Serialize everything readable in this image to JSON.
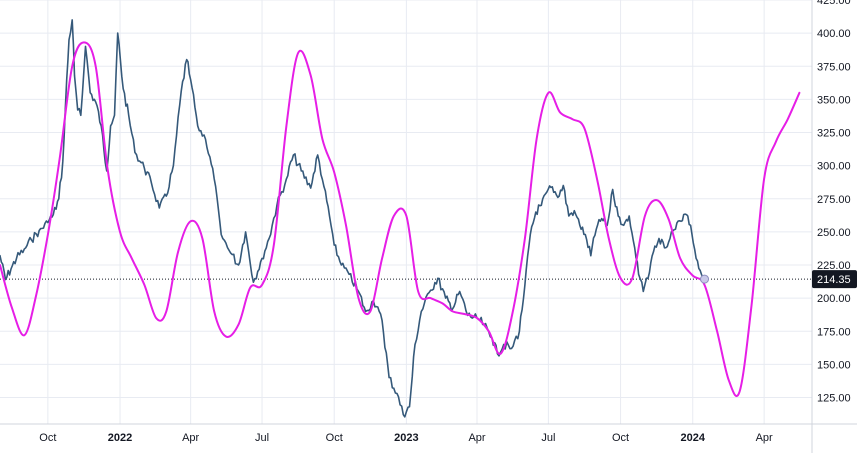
{
  "chart_data": {
    "type": "line",
    "title": "",
    "xlabel": "",
    "ylabel": "",
    "y_axis_position": "right",
    "grid": true,
    "ylim": [
      105,
      425
    ],
    "xlim": [
      "2021-08-01",
      "2024-06-01"
    ],
    "y_ticks": [
      {
        "value": 425,
        "label": "425.00"
      },
      {
        "value": 400,
        "label": "400.00"
      },
      {
        "value": 375,
        "label": "375.00"
      },
      {
        "value": 350,
        "label": "350.00"
      },
      {
        "value": 325,
        "label": "325.00"
      },
      {
        "value": 300,
        "label": "300.00"
      },
      {
        "value": 275,
        "label": "275.00"
      },
      {
        "value": 250,
        "label": "250.00"
      },
      {
        "value": 225,
        "label": "225.00"
      },
      {
        "value": 200,
        "label": "200.00"
      },
      {
        "value": 175,
        "label": "175.00"
      },
      {
        "value": 150,
        "label": "150.00"
      },
      {
        "value": 125,
        "label": "125.00"
      }
    ],
    "x_ticks": [
      {
        "date": "2021-10-01",
        "label": "Oct",
        "bold": false
      },
      {
        "date": "2022-01-01",
        "label": "2022",
        "bold": true
      },
      {
        "date": "2022-04-01",
        "label": "Apr",
        "bold": false
      },
      {
        "date": "2022-07-01",
        "label": "Jul",
        "bold": false
      },
      {
        "date": "2022-10-01",
        "label": "Oct",
        "bold": false
      },
      {
        "date": "2023-01-01",
        "label": "2023",
        "bold": true
      },
      {
        "date": "2023-04-01",
        "label": "Apr",
        "bold": false
      },
      {
        "date": "2023-07-01",
        "label": "Jul",
        "bold": false
      },
      {
        "date": "2023-10-01",
        "label": "Oct",
        "bold": false
      },
      {
        "date": "2024-01-01",
        "label": "2024",
        "bold": true
      },
      {
        "date": "2024-04-01",
        "label": "Apr",
        "bold": false
      }
    ],
    "last_price": {
      "value": 214.35,
      "label": "214.35",
      "color": "#131722"
    },
    "series": [
      {
        "color": "#35597a",
        "line_width": 1.6,
        "noise": true,
        "points": [
          [
            "2021-08-01",
            232
          ],
          [
            "2021-08-08",
            214
          ],
          [
            "2021-08-15",
            222
          ],
          [
            "2021-08-22",
            230
          ],
          [
            "2021-09-01",
            237
          ],
          [
            "2021-09-10",
            244
          ],
          [
            "2021-09-20",
            251
          ],
          [
            "2021-10-01",
            257
          ],
          [
            "2021-10-08",
            263
          ],
          [
            "2021-10-15",
            275
          ],
          [
            "2021-10-20",
            303
          ],
          [
            "2021-10-25",
            365
          ],
          [
            "2021-10-28",
            395
          ],
          [
            "2021-11-01",
            410
          ],
          [
            "2021-11-04",
            368
          ],
          [
            "2021-11-08",
            342
          ],
          [
            "2021-11-12",
            338
          ],
          [
            "2021-11-18",
            390
          ],
          [
            "2021-11-24",
            355
          ],
          [
            "2021-12-01",
            348
          ],
          [
            "2021-12-08",
            330
          ],
          [
            "2021-12-15",
            296
          ],
          [
            "2021-12-20",
            330
          ],
          [
            "2021-12-25",
            338
          ],
          [
            "2021-12-29",
            400
          ],
          [
            "2022-01-05",
            358
          ],
          [
            "2022-01-12",
            338
          ],
          [
            "2022-01-20",
            310
          ],
          [
            "2022-02-01",
            298
          ],
          [
            "2022-02-10",
            287
          ],
          [
            "2022-02-20",
            268
          ],
          [
            "2022-03-01",
            277
          ],
          [
            "2022-03-10",
            300
          ],
          [
            "2022-03-20",
            356
          ],
          [
            "2022-03-27",
            380
          ],
          [
            "2022-04-01",
            365
          ],
          [
            "2022-04-10",
            330
          ],
          [
            "2022-04-20",
            320
          ],
          [
            "2022-05-01",
            290
          ],
          [
            "2022-05-10",
            248
          ],
          [
            "2022-05-20",
            236
          ],
          [
            "2022-06-01",
            225
          ],
          [
            "2022-06-10",
            250
          ],
          [
            "2022-06-20",
            212
          ],
          [
            "2022-07-01",
            230
          ],
          [
            "2022-07-10",
            245
          ],
          [
            "2022-07-20",
            270
          ],
          [
            "2022-08-01",
            290
          ],
          [
            "2022-08-10",
            308
          ],
          [
            "2022-08-20",
            296
          ],
          [
            "2022-09-01",
            283
          ],
          [
            "2022-09-10",
            308
          ],
          [
            "2022-09-18",
            284
          ],
          [
            "2022-09-25",
            262
          ],
          [
            "2022-10-01",
            240
          ],
          [
            "2022-10-10",
            225
          ],
          [
            "2022-10-20",
            218
          ],
          [
            "2022-11-01",
            205
          ],
          [
            "2022-11-10",
            190
          ],
          [
            "2022-11-20",
            198
          ],
          [
            "2022-12-01",
            183
          ],
          [
            "2022-12-10",
            140
          ],
          [
            "2022-12-20",
            128
          ],
          [
            "2022-12-28",
            112
          ],
          [
            "2023-01-05",
            118
          ],
          [
            "2023-01-12",
            165
          ],
          [
            "2023-01-20",
            190
          ],
          [
            "2023-02-01",
            206
          ],
          [
            "2023-02-10",
            215
          ],
          [
            "2023-02-20",
            200
          ],
          [
            "2023-03-01",
            192
          ],
          [
            "2023-03-10",
            205
          ],
          [
            "2023-03-20",
            187
          ],
          [
            "2023-04-01",
            185
          ],
          [
            "2023-04-10",
            180
          ],
          [
            "2023-04-20",
            170
          ],
          [
            "2023-04-27",
            158
          ],
          [
            "2023-05-05",
            165
          ],
          [
            "2023-05-15",
            162
          ],
          [
            "2023-05-25",
            175
          ],
          [
            "2023-06-01",
            210
          ],
          [
            "2023-06-08",
            248
          ],
          [
            "2023-06-15",
            265
          ],
          [
            "2023-06-22",
            270
          ],
          [
            "2023-06-29",
            280
          ],
          [
            "2023-07-06",
            284
          ],
          [
            "2023-07-13",
            276
          ],
          [
            "2023-07-20",
            285
          ],
          [
            "2023-07-27",
            262
          ],
          [
            "2023-08-03",
            266
          ],
          [
            "2023-08-10",
            255
          ],
          [
            "2023-08-17",
            248
          ],
          [
            "2023-08-24",
            232
          ],
          [
            "2023-08-31",
            252
          ],
          [
            "2023-09-07",
            260
          ],
          [
            "2023-09-14",
            255
          ],
          [
            "2023-09-21",
            282
          ],
          [
            "2023-09-28",
            262
          ],
          [
            "2023-10-05",
            255
          ],
          [
            "2023-10-12",
            262
          ],
          [
            "2023-10-19",
            238
          ],
          [
            "2023-10-24",
            218
          ],
          [
            "2023-10-30",
            205
          ],
          [
            "2023-11-05",
            215
          ],
          [
            "2023-11-12",
            235
          ],
          [
            "2023-11-19",
            245
          ],
          [
            "2023-11-26",
            238
          ],
          [
            "2023-12-03",
            245
          ],
          [
            "2023-12-10",
            252
          ],
          [
            "2023-12-17",
            258
          ],
          [
            "2023-12-24",
            263
          ],
          [
            "2023-12-31",
            248
          ],
          [
            "2024-01-07",
            228
          ],
          [
            "2024-01-14",
            216
          ]
        ]
      },
      {
        "color": "#e61ee6",
        "line_width": 2,
        "noise": false,
        "points": [
          [
            "2021-08-01",
            225
          ],
          [
            "2021-08-16",
            193
          ],
          [
            "2021-09-01",
            172
          ],
          [
            "2021-09-16",
            202
          ],
          [
            "2021-10-01",
            248
          ],
          [
            "2021-10-16",
            305
          ],
          [
            "2021-11-01",
            375
          ],
          [
            "2021-11-16",
            393
          ],
          [
            "2021-12-01",
            375
          ],
          [
            "2021-12-16",
            298
          ],
          [
            "2022-01-01",
            250
          ],
          [
            "2022-01-16",
            230
          ],
          [
            "2022-02-01",
            210
          ],
          [
            "2022-02-16",
            185
          ],
          [
            "2022-03-01",
            190
          ],
          [
            "2022-03-16",
            235
          ],
          [
            "2022-04-01",
            258
          ],
          [
            "2022-04-16",
            245
          ],
          [
            "2022-05-01",
            190
          ],
          [
            "2022-05-16",
            171
          ],
          [
            "2022-06-01",
            180
          ],
          [
            "2022-06-16",
            208
          ],
          [
            "2022-07-01",
            210
          ],
          [
            "2022-07-16",
            240
          ],
          [
            "2022-08-01",
            330
          ],
          [
            "2022-08-16",
            385
          ],
          [
            "2022-09-01",
            368
          ],
          [
            "2022-09-16",
            320
          ],
          [
            "2022-10-01",
            295
          ],
          [
            "2022-10-16",
            255
          ],
          [
            "2022-11-01",
            200
          ],
          [
            "2022-11-16",
            190
          ],
          [
            "2022-12-01",
            230
          ],
          [
            "2022-12-16",
            262
          ],
          [
            "2023-01-01",
            262
          ],
          [
            "2023-01-16",
            205
          ],
          [
            "2023-02-01",
            200
          ],
          [
            "2023-02-16",
            196
          ],
          [
            "2023-03-01",
            190
          ],
          [
            "2023-03-16",
            188
          ],
          [
            "2023-04-01",
            185
          ],
          [
            "2023-04-16",
            175
          ],
          [
            "2023-05-01",
            158
          ],
          [
            "2023-05-16",
            188
          ],
          [
            "2023-06-01",
            245
          ],
          [
            "2023-06-16",
            320
          ],
          [
            "2023-07-01",
            355
          ],
          [
            "2023-07-16",
            340
          ],
          [
            "2023-08-01",
            335
          ],
          [
            "2023-08-16",
            328
          ],
          [
            "2023-09-01",
            290
          ],
          [
            "2023-09-16",
            245
          ],
          [
            "2023-10-01",
            215
          ],
          [
            "2023-10-16",
            215
          ],
          [
            "2023-11-01",
            262
          ],
          [
            "2023-11-16",
            274
          ],
          [
            "2023-12-01",
            260
          ],
          [
            "2023-12-16",
            230
          ],
          [
            "2024-01-01",
            217
          ],
          [
            "2024-01-16",
            210
          ],
          [
            "2024-02-01",
            175
          ],
          [
            "2024-02-16",
            138
          ],
          [
            "2024-03-01",
            130
          ],
          [
            "2024-03-16",
            195
          ],
          [
            "2024-04-01",
            290
          ],
          [
            "2024-04-16",
            318
          ],
          [
            "2024-05-01",
            335
          ],
          [
            "2024-05-16",
            355
          ]
        ]
      }
    ]
  }
}
